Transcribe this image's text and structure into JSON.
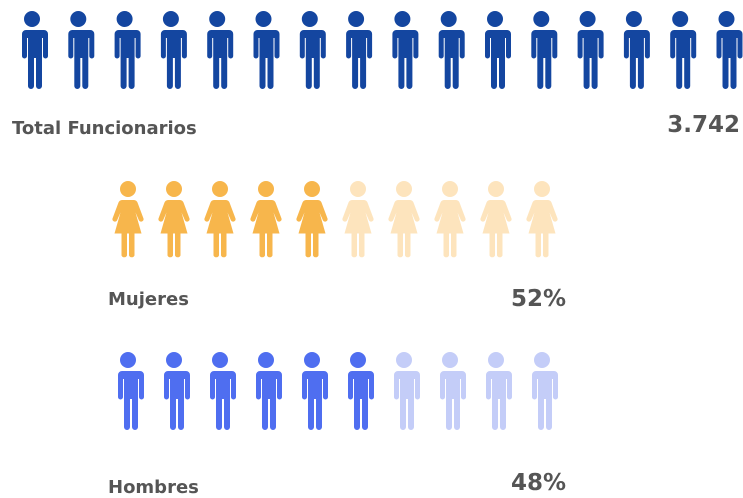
{
  "total": {
    "label": "Total Funcionarios",
    "value": "3.742"
  },
  "women": {
    "label": "Mujeres",
    "value": "52%"
  },
  "men": {
    "label": "Hombres",
    "value": "48%"
  }
}
